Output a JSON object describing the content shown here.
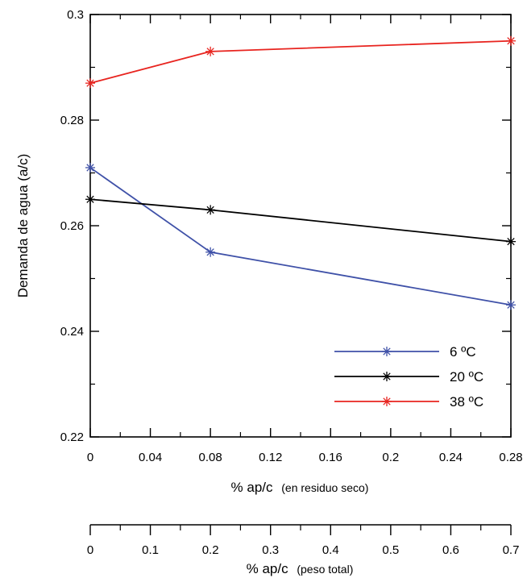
{
  "chart_data": {
    "type": "line",
    "x": [
      0,
      0.08,
      0.28
    ],
    "ylim": [
      0.22,
      0.3
    ],
    "xlim": [
      0,
      0.28
    ],
    "yticks": [
      "0.22",
      "0.24",
      "0.26",
      "0.28",
      "0.3"
    ],
    "xticks": [
      "0",
      "0.04",
      "0.08",
      "0.12",
      "0.16",
      "0.2",
      "0.24",
      "0.28"
    ],
    "ylabel": "Demanda de agua (a/c)",
    "xlabel_main": "% ap/c",
    "xlabel_note": "(en residuo seco)",
    "secondary_x": {
      "range": [
        0,
        0.7
      ],
      "ticks": [
        "0",
        "0.1",
        "0.2",
        "0.3",
        "0.4",
        "0.5",
        "0.6",
        "0.7"
      ],
      "label_main": "% ap/c",
      "label_note": "(peso total)"
    },
    "series": [
      {
        "name": "6 ºC",
        "color": "#3f51a8",
        "values": [
          0.271,
          0.255,
          0.245
        ]
      },
      {
        "name": "20 ºC",
        "color": "#000000",
        "values": [
          0.265,
          0.263,
          0.257
        ]
      },
      {
        "name": "38 ºC",
        "color": "#e8241f",
        "values": [
          0.287,
          0.293,
          0.295
        ]
      }
    ],
    "grid": false,
    "legend_position": "bottom-right",
    "marker": "asterisk"
  }
}
